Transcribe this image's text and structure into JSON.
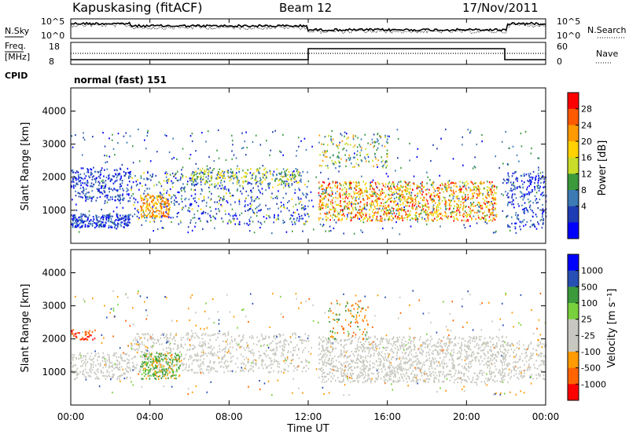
{
  "header": {
    "station": "Kapuskasing (fitACF)",
    "beam": "Beam 12",
    "date": "17/Nov/2011"
  },
  "top_panels": {
    "nsky_label": "N.Sky",
    "nsky_ticks": [
      "10^5",
      "10^0"
    ],
    "nsearch_label": "N.Search",
    "nsearch_ticks": [
      "10^5",
      "10^0"
    ],
    "freq_label_line1": "Freq.",
    "freq_label_line2": "[MHz]",
    "freq_ticks": [
      "18",
      "8"
    ],
    "nave_label": "Nave",
    "nave_ticks": [
      "60",
      "0"
    ],
    "cpid_label": "CPID",
    "cpid_value": "normal (fast) 151"
  },
  "chart_data": [
    {
      "type": "heatmap",
      "name": "power",
      "ylabel": "Slant Range [km]",
      "y_ticks": [
        "4000",
        "3000",
        "2000",
        "1000"
      ],
      "ylim": [
        0,
        4700
      ],
      "xlim_hours": [
        0,
        24
      ],
      "colorbar_label": "Power [dB]",
      "colorbar_ticks": [
        "28",
        "24",
        "20",
        "16",
        "12",
        "8",
        "4"
      ],
      "colorbar_colors": [
        "#ff0000",
        "#ff5a00",
        "#ff9a00",
        "#ffd200",
        "#c8dc28",
        "#3c9a3c",
        "#3c7ab4",
        "#1e3cb4",
        "#0000ff"
      ]
    },
    {
      "type": "heatmap",
      "name": "velocity",
      "ylabel": "Slant Range [km]",
      "y_ticks": [
        "4000",
        "3000",
        "2000",
        "1000"
      ],
      "ylim": [
        0,
        4700
      ],
      "xlim_hours": [
        0,
        24
      ],
      "colorbar_label": "Velocity [m s⁻¹]",
      "colorbar_ticks": [
        "1000",
        "500",
        "100",
        "25",
        "-25",
        "-100",
        "-500",
        "-1000"
      ],
      "colorbar_colors": [
        "#0000ff",
        "#2850b4",
        "#3c9a3c",
        "#78d03c",
        "#c8c8c0",
        "#c8c8c0",
        "#ff9a00",
        "#ff6400",
        "#ff0000"
      ]
    }
  ],
  "x_axis": {
    "label": "Time UT",
    "ticks": [
      "00:00",
      "04:00",
      "08:00",
      "12:00",
      "16:00",
      "20:00",
      "00:00"
    ],
    "tick_hours": [
      0,
      4,
      8,
      12,
      16,
      20,
      24
    ]
  },
  "colors": {
    "ground_grey": "#c8c8c0",
    "axis": "#000000"
  }
}
